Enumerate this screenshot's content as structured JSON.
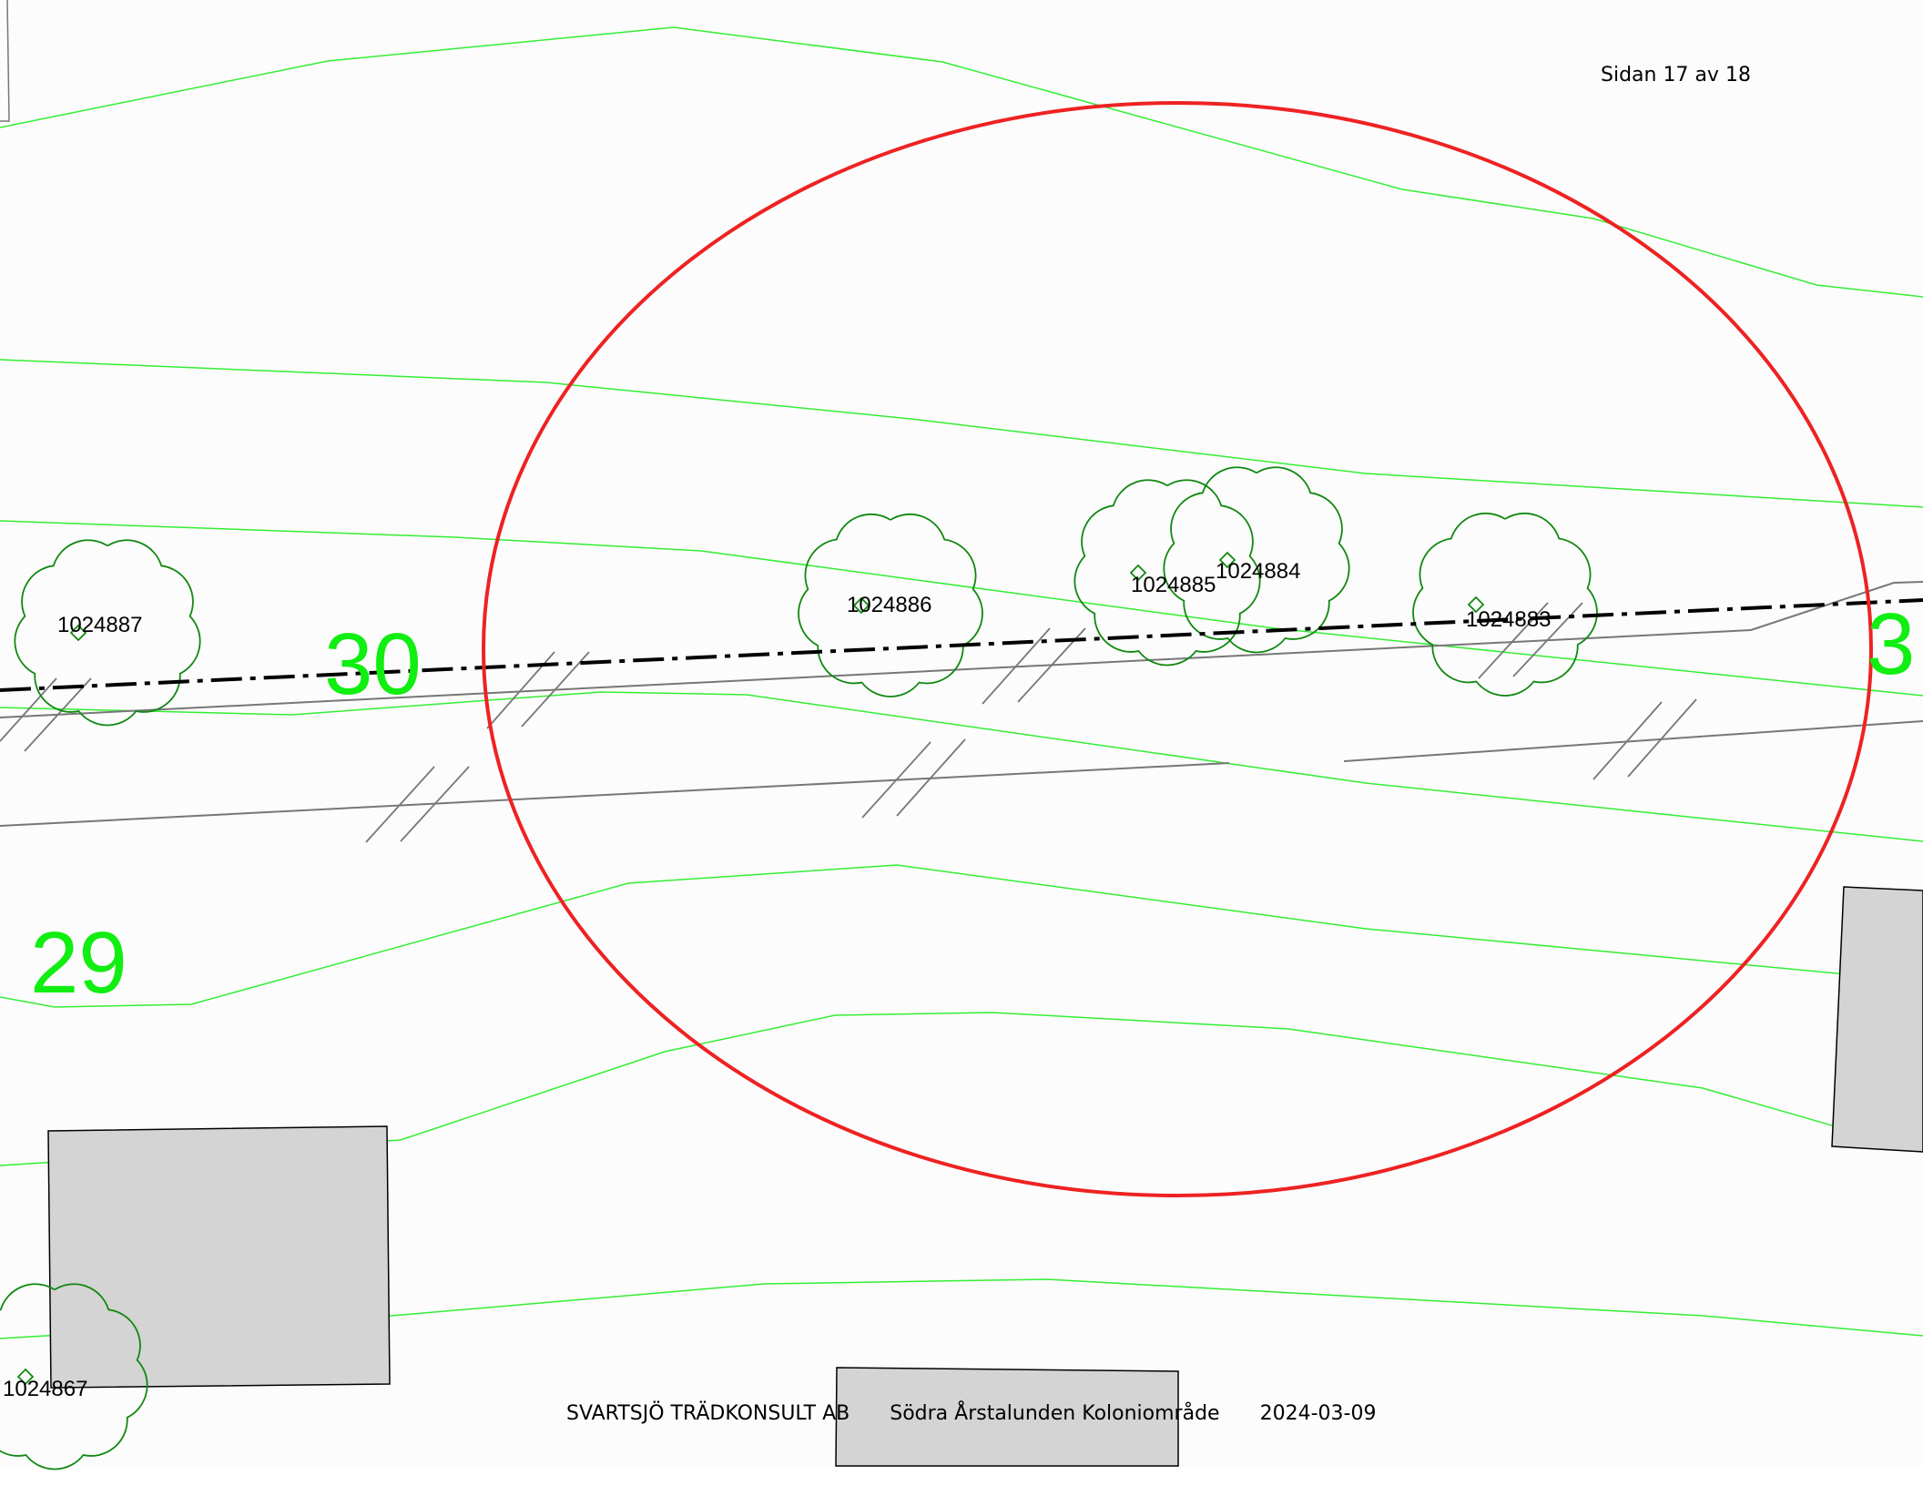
{
  "page": {
    "page_number_text": "Sidan 17 av 18",
    "footer": {
      "company": "SVARTSJÖ TRÄDKONSULT AB",
      "project": "Södra Årstalunden Koloniområde",
      "date": "2024-03-09"
    }
  },
  "map": {
    "plot_numbers": [
      "30",
      "29",
      "3"
    ],
    "trees": [
      {
        "id": "1024887"
      },
      {
        "id": "1024886"
      },
      {
        "id": "1024885"
      },
      {
        "id": "1024884"
      },
      {
        "id": "1024883"
      },
      {
        "id": "1024867"
      }
    ],
    "colors": {
      "contour": "#33ee33",
      "plot_number": "#11ee11",
      "tree_outline": "#118811",
      "highlight_ellipse": "#ee2222",
      "building_fill": "#d4d4d4",
      "path_line": "#777777",
      "boundary_line": "#000000",
      "background": "#fcfcfc"
    }
  }
}
